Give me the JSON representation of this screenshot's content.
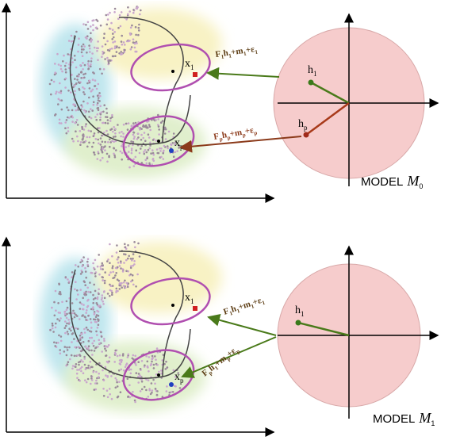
{
  "panels": [
    {
      "x1": {
        "base": "x",
        "sub": "1"
      },
      "xp": {
        "base": "x",
        "sub": "p"
      },
      "formula1": [
        [
          "F",
          "1"
        ],
        [
          "h",
          "1"
        ],
        [
          "+m",
          "1"
        ],
        [
          "+ε",
          "1"
        ]
      ],
      "formulap": [
        [
          "F",
          "p"
        ],
        [
          "h",
          "p"
        ],
        [
          "+m",
          "p"
        ],
        [
          "+ε",
          "p"
        ]
      ],
      "h1": {
        "base": "h",
        "sub": "1"
      },
      "hp": {
        "base": "h",
        "sub": "p"
      },
      "model": {
        "text": "MODEL",
        "symbol": "M",
        "sub": "0"
      }
    },
    {
      "x1": {
        "base": "x",
        "sub": "1"
      },
      "xp": {
        "base": "x",
        "sub": "p"
      },
      "formula1": [
        [
          "F",
          "1"
        ],
        [
          "h",
          "1"
        ],
        [
          "+m",
          "1"
        ],
        [
          "+ε",
          "1"
        ]
      ],
      "formulap": [
        [
          "F",
          "p"
        ],
        [
          "h",
          "1"
        ],
        [
          "+m",
          "p"
        ],
        [
          "+ε",
          "p"
        ]
      ],
      "h1": {
        "base": "h",
        "sub": "1"
      },
      "model": {
        "text": "MODEL",
        "symbol": "M",
        "sub": "1"
      }
    }
  ]
}
